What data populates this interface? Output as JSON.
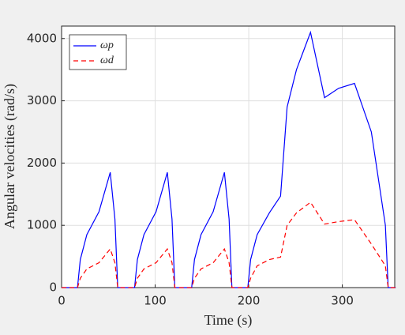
{
  "chart_data": {
    "type": "line",
    "xlabel": "Time (s)",
    "ylabel": "Angular velocities (rad/s)",
    "xlim": [
      0,
      356
    ],
    "ylim": [
      0,
      4200
    ],
    "xticks": [
      0,
      100,
      200,
      300
    ],
    "yticks": [
      0,
      1000,
      2000,
      3000,
      4000
    ],
    "grid": true,
    "legend": "upper left",
    "series": [
      {
        "name": "ωp",
        "color": "#0000ff",
        "dash": "solid",
        "x": [
          0,
          17,
          20,
          27,
          40,
          52,
          57,
          60,
          78,
          81,
          88,
          101,
          113,
          118,
          121,
          139,
          142,
          149,
          162,
          174,
          179,
          182,
          199,
          202,
          209,
          222,
          234,
          241,
          251,
          266,
          281,
          296,
          313,
          331,
          346,
          349,
          357
        ],
        "values": [
          0,
          0,
          450,
          850,
          1220,
          1850,
          1100,
          0,
          0,
          450,
          850,
          1220,
          1850,
          1100,
          0,
          0,
          450,
          850,
          1220,
          1850,
          1100,
          0,
          0,
          450,
          850,
          1200,
          1470,
          2900,
          3500,
          4100,
          3050,
          3200,
          3280,
          2500,
          1000,
          0,
          0
        ]
      },
      {
        "name": "ωd",
        "color": "#ff0000",
        "dash": "dashed",
        "x": [
          0,
          17,
          20,
          27,
          40,
          52,
          57,
          60,
          78,
          81,
          88,
          101,
          113,
          118,
          121,
          139,
          142,
          149,
          162,
          174,
          179,
          182,
          199,
          202,
          209,
          222,
          234,
          241,
          251,
          266,
          281,
          296,
          313,
          331,
          346,
          349,
          357
        ],
        "values": [
          0,
          0,
          150,
          300,
          400,
          620,
          400,
          0,
          0,
          150,
          300,
          400,
          620,
          400,
          0,
          0,
          150,
          300,
          400,
          620,
          400,
          0,
          0,
          150,
          350,
          450,
          490,
          1000,
          1200,
          1370,
          1020,
          1060,
          1090,
          700,
          350,
          0,
          0
        ]
      }
    ]
  }
}
